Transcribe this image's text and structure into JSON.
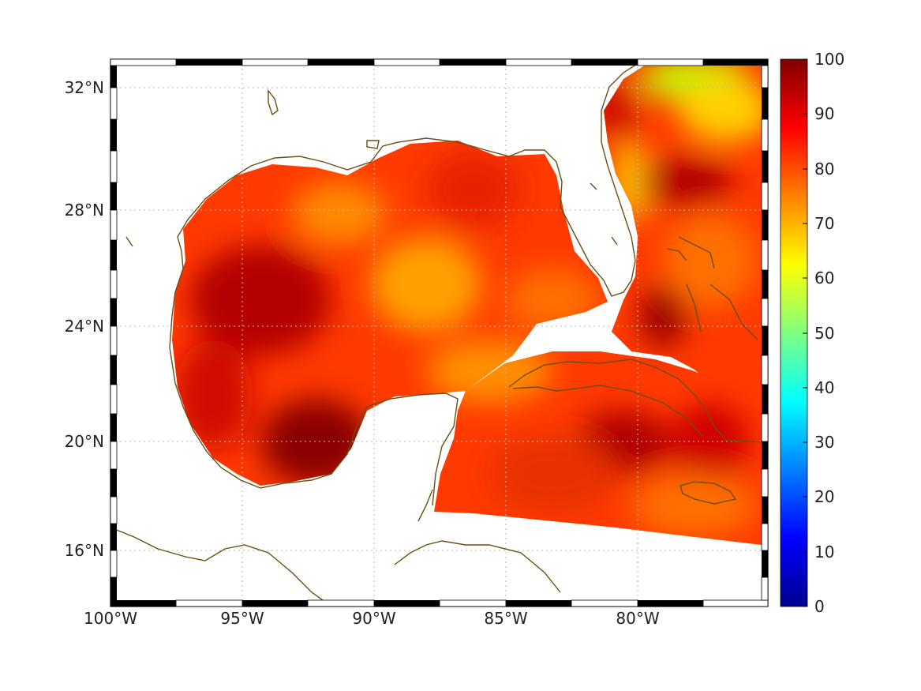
{
  "map": {
    "lat_ticks": [
      "32°N",
      "28°N",
      "24°N",
      "20°N",
      "16°N"
    ],
    "lon_ticks": [
      "100°W",
      "95°W",
      "90°W",
      "85°W",
      "80°W"
    ],
    "grid": "dotted",
    "land_fill": "white",
    "coastline_color": "#6b4e12"
  },
  "colorbar": {
    "ticks": [
      "0",
      "10",
      "20",
      "30",
      "40",
      "50",
      "60",
      "70",
      "80",
      "90",
      "100"
    ],
    "range": [
      0,
      100
    ],
    "colormap": "jet",
    "stops": [
      "#00008f",
      "#0000ff",
      "#0080ff",
      "#00ffff",
      "#80ff80",
      "#ffff00",
      "#ff8000",
      "#ff0000",
      "#800000"
    ]
  },
  "field": {
    "dominant_range": [
      70,
      100
    ],
    "high_colors": [
      "#8b0000",
      "#c80000",
      "#ff2a00"
    ],
    "mid_colors": [
      "#ff6a00",
      "#ff9a00",
      "#ffc800"
    ],
    "min_value_region_color": "#c8f000"
  }
}
